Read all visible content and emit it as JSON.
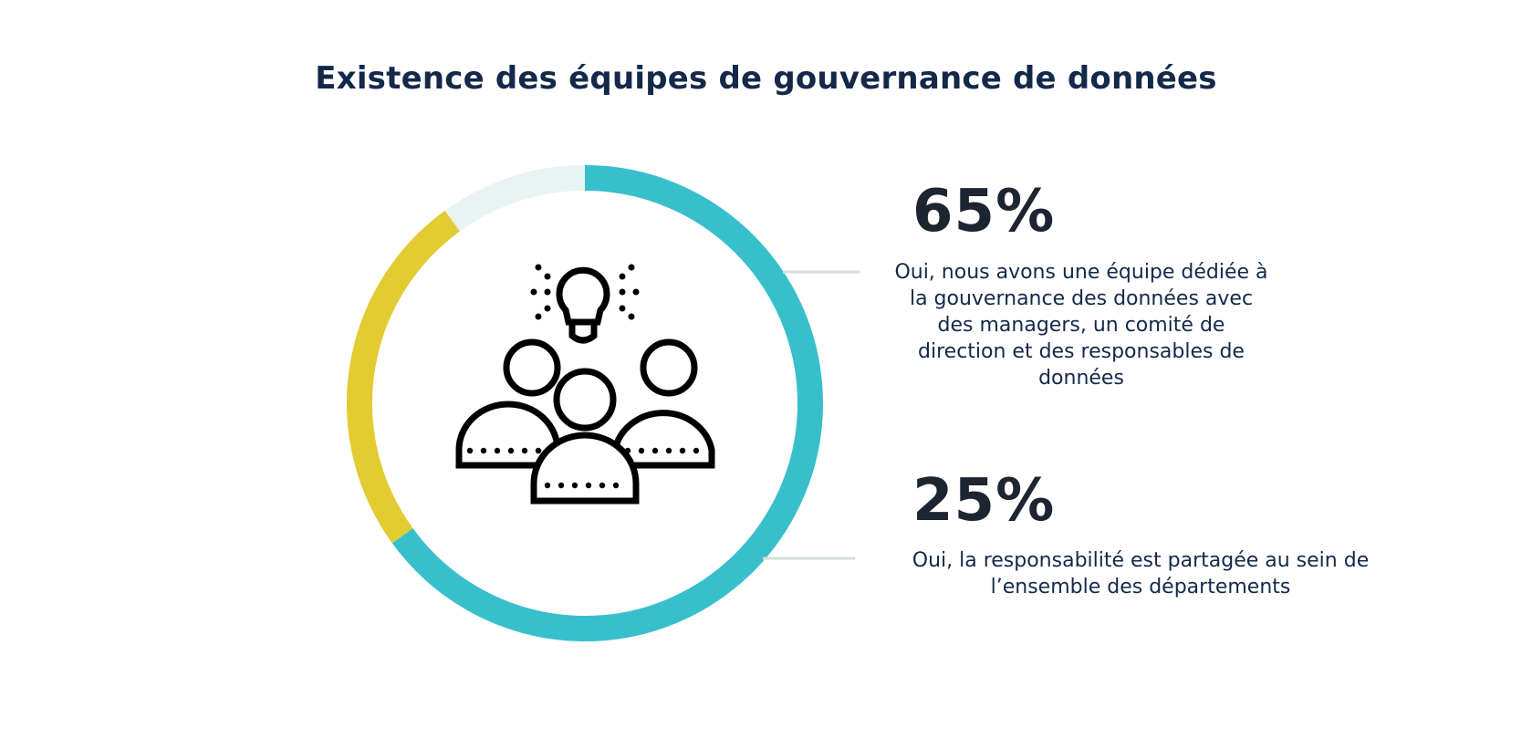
{
  "title": "Existence des équipes de gouvernance de données",
  "chart_data": {
    "type": "pie",
    "style": "donut",
    "categories": [
      "Oui, nous avons une équipe dédiée à la gouvernance des données avec des managers, un comité de direction et des responsables de données",
      "Oui, la responsabilité est partagée au sein de l’ensemble des départements",
      ""
    ],
    "values": [
      65,
      25,
      10
    ],
    "colors": [
      "#38bfcc",
      "#e3cb32",
      "#e9f3f1"
    ],
    "labels": [
      {
        "value_text": "65%",
        "text": "Oui, nous avons une équipe dédiée à\nla gouvernance des données avec\ndes managers, un comité de\ndirection et des responsables de\ndonnées"
      },
      {
        "value_text": "25%",
        "text": "Oui, la responsabilité est partagée au sein de\nl’ensemble des départements"
      }
    ],
    "center_icon": "team-lightbulb-icon",
    "leader_color": "#d7dcdc"
  }
}
